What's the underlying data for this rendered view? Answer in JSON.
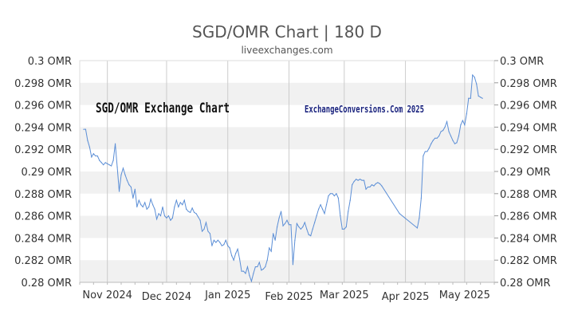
{
  "chart_data": {
    "type": "line",
    "title": "SGD/OMR Chart | 180 D",
    "subtitle": "liveexchanges.com",
    "watermark_left": "SGD/OMR Exchange Chart",
    "watermark_right": "ExchangeConversions.Com 2025",
    "ylim": [
      0.28,
      0.3
    ],
    "ytick_values": [
      0.3,
      0.298,
      0.296,
      0.294,
      0.292,
      0.29,
      0.288,
      0.286,
      0.284,
      0.282,
      0.28
    ],
    "yticks": [
      "0.3 OMR",
      "0.298 OMR",
      "0.296 OMR",
      "0.294 OMR",
      "0.292 OMR",
      "0.29 OMR",
      "0.288 OMR",
      "0.286 OMR",
      "0.284 OMR",
      "0.282 OMR",
      "0.28 OMR"
    ],
    "xlim": [
      "2024-10-18",
      "2025-05-16"
    ],
    "xticks": [
      {
        "date": "2024-11-01",
        "label": "Nov 2024"
      },
      {
        "date": "2024-12-01",
        "label": "Dec 2024"
      },
      {
        "date": "2025-01-01",
        "label": "Jan 2025"
      },
      {
        "date": "2025-02-01",
        "label": "Feb 2025"
      },
      {
        "date": "2025-03-01",
        "label": "Mar 2025"
      },
      {
        "date": "2025-04-01",
        "label": "Apr 2025"
      },
      {
        "date": "2025-05-01",
        "label": "May 2025"
      }
    ],
    "grid": "horizontal-bands",
    "line_color": "#5b8ed6",
    "band_color": "#f1f1f1",
    "series": [
      {
        "points": [
          [
            "2024-10-20",
            0.2938
          ],
          [
            "2024-10-21",
            0.2938
          ],
          [
            "2024-10-22",
            0.2928
          ],
          [
            "2024-10-23",
            0.2922
          ],
          [
            "2024-10-24",
            0.2913
          ],
          [
            "2024-10-25",
            0.2916
          ],
          [
            "2024-10-26",
            0.2914
          ],
          [
            "2024-10-27",
            0.2914
          ],
          [
            "2024-10-28",
            0.291
          ],
          [
            "2024-10-29",
            0.2908
          ],
          [
            "2024-10-30",
            0.2906
          ],
          [
            "2024-10-31",
            0.2908
          ],
          [
            "2024-11-01",
            0.2907
          ],
          [
            "2024-11-02",
            0.2906
          ],
          [
            "2024-11-03",
            0.2905
          ],
          [
            "2024-11-04",
            0.291
          ],
          [
            "2024-11-05",
            0.2925
          ],
          [
            "2024-11-06",
            0.2904
          ],
          [
            "2024-11-07",
            0.2882
          ],
          [
            "2024-11-08",
            0.2897
          ],
          [
            "2024-11-09",
            0.2903
          ],
          [
            "2024-11-10",
            0.2897
          ],
          [
            "2024-11-11",
            0.2892
          ],
          [
            "2024-11-12",
            0.2888
          ],
          [
            "2024-11-13",
            0.2886
          ],
          [
            "2024-11-14",
            0.2876
          ],
          [
            "2024-11-15",
            0.2884
          ],
          [
            "2024-11-16",
            0.2868
          ],
          [
            "2024-11-17",
            0.2874
          ],
          [
            "2024-11-18",
            0.287
          ],
          [
            "2024-11-19",
            0.2868
          ],
          [
            "2024-11-20",
            0.2872
          ],
          [
            "2024-11-21",
            0.2866
          ],
          [
            "2024-11-22",
            0.2868
          ],
          [
            "2024-11-23",
            0.2875
          ],
          [
            "2024-11-24",
            0.287
          ],
          [
            "2024-11-25",
            0.2866
          ],
          [
            "2024-11-26",
            0.2857
          ],
          [
            "2024-11-27",
            0.2862
          ],
          [
            "2024-11-28",
            0.286
          ],
          [
            "2024-11-29",
            0.2868
          ],
          [
            "2024-11-30",
            0.286
          ],
          [
            "2024-12-01",
            0.2858
          ],
          [
            "2024-12-02",
            0.286
          ],
          [
            "2024-12-03",
            0.2856
          ],
          [
            "2024-12-04",
            0.2858
          ],
          [
            "2024-12-05",
            0.2868
          ],
          [
            "2024-12-06",
            0.2874
          ],
          [
            "2024-12-07",
            0.2868
          ],
          [
            "2024-12-08",
            0.2872
          ],
          [
            "2024-12-09",
            0.287
          ],
          [
            "2024-12-10",
            0.2874
          ],
          [
            "2024-12-11",
            0.2866
          ],
          [
            "2024-12-12",
            0.2864
          ],
          [
            "2024-12-13",
            0.2863
          ],
          [
            "2024-12-14",
            0.2867
          ],
          [
            "2024-12-15",
            0.2863
          ],
          [
            "2024-12-16",
            0.2862
          ],
          [
            "2024-12-17",
            0.2859
          ],
          [
            "2024-12-18",
            0.2856
          ],
          [
            "2024-12-19",
            0.2846
          ],
          [
            "2024-12-20",
            0.2848
          ],
          [
            "2024-12-21",
            0.2854
          ],
          [
            "2024-12-22",
            0.2846
          ],
          [
            "2024-12-23",
            0.2844
          ],
          [
            "2024-12-24",
            0.2833
          ],
          [
            "2024-12-25",
            0.2838
          ],
          [
            "2024-12-26",
            0.2836
          ],
          [
            "2024-12-27",
            0.2838
          ],
          [
            "2024-12-28",
            0.2836
          ],
          [
            "2024-12-29",
            0.2833
          ],
          [
            "2024-12-30",
            0.2834
          ],
          [
            "2024-12-31",
            0.2838
          ],
          [
            "2025-01-01",
            0.2833
          ],
          [
            "2025-01-02",
            0.2831
          ],
          [
            "2025-01-03",
            0.2824
          ],
          [
            "2025-01-04",
            0.282
          ],
          [
            "2025-01-05",
            0.2826
          ],
          [
            "2025-01-06",
            0.283
          ],
          [
            "2025-01-07",
            0.2821
          ],
          [
            "2025-01-08",
            0.281
          ],
          [
            "2025-01-09",
            0.281
          ],
          [
            "2025-01-10",
            0.2808
          ],
          [
            "2025-01-11",
            0.2814
          ],
          [
            "2025-01-12",
            0.2806
          ],
          [
            "2025-01-13",
            0.2801
          ],
          [
            "2025-01-14",
            0.2808
          ],
          [
            "2025-01-15",
            0.2814
          ],
          [
            "2025-01-16",
            0.2814
          ],
          [
            "2025-01-17",
            0.2818
          ],
          [
            "2025-01-18",
            0.2811
          ],
          [
            "2025-01-19",
            0.2812
          ],
          [
            "2025-01-20",
            0.2814
          ],
          [
            "2025-01-21",
            0.282
          ],
          [
            "2025-01-22",
            0.2831
          ],
          [
            "2025-01-23",
            0.2828
          ],
          [
            "2025-01-24",
            0.2844
          ],
          [
            "2025-01-25",
            0.2838
          ],
          [
            "2025-01-26",
            0.285
          ],
          [
            "2025-01-27",
            0.2858
          ],
          [
            "2025-01-28",
            0.2864
          ],
          [
            "2025-01-29",
            0.2851
          ],
          [
            "2025-01-30",
            0.2853
          ],
          [
            "2025-01-31",
            0.2856
          ],
          [
            "2025-02-01",
            0.2852
          ],
          [
            "2025-02-02",
            0.2852
          ],
          [
            "2025-02-03",
            0.2816
          ],
          [
            "2025-02-04",
            0.2838
          ],
          [
            "2025-02-05",
            0.2853
          ],
          [
            "2025-02-06",
            0.285
          ],
          [
            "2025-02-07",
            0.2848
          ],
          [
            "2025-02-08",
            0.285
          ],
          [
            "2025-02-09",
            0.2854
          ],
          [
            "2025-02-10",
            0.2848
          ],
          [
            "2025-02-11",
            0.2843
          ],
          [
            "2025-02-12",
            0.2842
          ],
          [
            "2025-02-13",
            0.2848
          ],
          [
            "2025-02-14",
            0.2854
          ],
          [
            "2025-02-15",
            0.286
          ],
          [
            "2025-02-16",
            0.2866
          ],
          [
            "2025-02-17",
            0.287
          ],
          [
            "2025-02-18",
            0.2866
          ],
          [
            "2025-02-19",
            0.2862
          ],
          [
            "2025-02-20",
            0.287
          ],
          [
            "2025-02-21",
            0.2878
          ],
          [
            "2025-02-22",
            0.288
          ],
          [
            "2025-02-23",
            0.288
          ],
          [
            "2025-02-24",
            0.2878
          ],
          [
            "2025-02-25",
            0.288
          ],
          [
            "2025-02-26",
            0.2876
          ],
          [
            "2025-02-27",
            0.286
          ],
          [
            "2025-02-28",
            0.2848
          ],
          [
            "2025-03-01",
            0.2848
          ],
          [
            "2025-03-02",
            0.285
          ],
          [
            "2025-03-03",
            0.2864
          ],
          [
            "2025-03-04",
            0.2874
          ],
          [
            "2025-03-05",
            0.2888
          ],
          [
            "2025-03-06",
            0.2891
          ],
          [
            "2025-03-07",
            0.2893
          ],
          [
            "2025-03-08",
            0.2892
          ],
          [
            "2025-03-09",
            0.2893
          ],
          [
            "2025-03-10",
            0.2892
          ],
          [
            "2025-03-11",
            0.2892
          ],
          [
            "2025-03-12",
            0.2884
          ],
          [
            "2025-03-13",
            0.2886
          ],
          [
            "2025-03-14",
            0.2886
          ],
          [
            "2025-03-15",
            0.2888
          ],
          [
            "2025-03-16",
            0.2887
          ],
          [
            "2025-03-17",
            0.2889
          ],
          [
            "2025-03-18",
            0.289
          ],
          [
            "2025-03-19",
            0.2889
          ],
          [
            "2025-03-20",
            0.2887
          ],
          [
            "2025-03-29",
            0.2862
          ],
          [
            "2025-04-07",
            0.2849
          ],
          [
            "2025-04-08",
            0.2858
          ],
          [
            "2025-04-09",
            0.2876
          ],
          [
            "2025-04-10",
            0.2914
          ],
          [
            "2025-04-11",
            0.2918
          ],
          [
            "2025-04-12",
            0.2918
          ],
          [
            "2025-04-13",
            0.2921
          ],
          [
            "2025-04-14",
            0.2925
          ],
          [
            "2025-04-15",
            0.2928
          ],
          [
            "2025-04-16",
            0.293
          ],
          [
            "2025-04-17",
            0.293
          ],
          [
            "2025-04-18",
            0.2932
          ],
          [
            "2025-04-19",
            0.2936
          ],
          [
            "2025-04-20",
            0.2937
          ],
          [
            "2025-04-21",
            0.294
          ],
          [
            "2025-04-22",
            0.2945
          ],
          [
            "2025-04-23",
            0.2936
          ],
          [
            "2025-04-24",
            0.2932
          ],
          [
            "2025-04-25",
            0.2928
          ],
          [
            "2025-04-26",
            0.2925
          ],
          [
            "2025-04-27",
            0.2926
          ],
          [
            "2025-04-28",
            0.2932
          ],
          [
            "2025-04-29",
            0.2942
          ],
          [
            "2025-04-30",
            0.2946
          ],
          [
            "2025-05-01",
            0.2942
          ],
          [
            "2025-05-02",
            0.2952
          ],
          [
            "2025-05-03",
            0.2966
          ],
          [
            "2025-05-04",
            0.2966
          ],
          [
            "2025-05-05",
            0.2987
          ],
          [
            "2025-05-06",
            0.2985
          ],
          [
            "2025-05-07",
            0.2979
          ],
          [
            "2025-05-08",
            0.2968
          ],
          [
            "2025-05-09",
            0.2967
          ],
          [
            "2025-05-10",
            0.2966
          ]
        ]
      }
    ]
  }
}
